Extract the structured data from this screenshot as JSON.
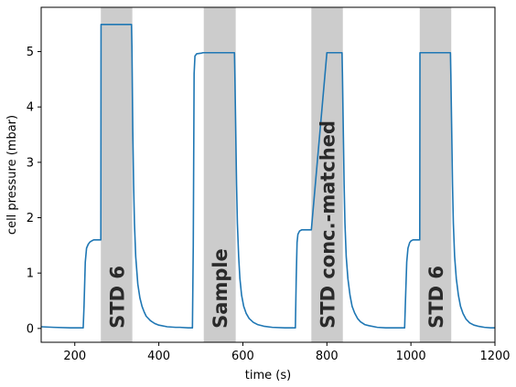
{
  "chart_data": {
    "type": "line",
    "title": "",
    "xlabel": "time (s)",
    "ylabel": "cell pressure (mbar)",
    "xlim": [
      120,
      1200
    ],
    "ylim": [
      -0.25,
      5.8
    ],
    "grid": false,
    "xticks": [
      200,
      400,
      600,
      800,
      1000,
      1200
    ],
    "yticks": [
      0,
      1,
      2,
      3,
      4,
      5
    ],
    "line_color": "#1f77b4",
    "band_color": "#cccccc",
    "bands": [
      {
        "x_start": 262,
        "x_end": 337,
        "label": "STD 6"
      },
      {
        "x_start": 507,
        "x_end": 583,
        "label": "Sample"
      },
      {
        "x_start": 763,
        "x_end": 838,
        "label": "STD conc.-matched"
      },
      {
        "x_start": 1021,
        "x_end": 1096,
        "label": "STD 6"
      }
    ],
    "series": [
      {
        "x": [
          120,
          150,
          190,
          220,
          222,
          225,
          228,
          232,
          236,
          240,
          245,
          250,
          255,
          260,
          261,
          262,
          262.5,
          265,
          300,
          335,
          336,
          338,
          340,
          342,
          345,
          350,
          355,
          360,
          365,
          370,
          380,
          390,
          400,
          420,
          440,
          450,
          470,
          480,
          482,
          484,
          486,
          490,
          500,
          505,
          507,
          520,
          560,
          580,
          581,
          583,
          585,
          587,
          590,
          593,
          597,
          602,
          608,
          615,
          625,
          635,
          650,
          670,
          700,
          725,
          727,
          729,
          731,
          735,
          740,
          750,
          760,
          763,
          800,
          836,
          837,
          839,
          841,
          843,
          846,
          850,
          855,
          860,
          866,
          873,
          880,
          890,
          900,
          920,
          940,
          960,
          985,
          987,
          990,
          993,
          997,
          1000,
          1005,
          1010,
          1015,
          1019,
          1020,
          1021,
          1021.5,
          1024,
          1060,
          1094,
          1095,
          1097,
          1099,
          1101,
          1104,
          1108,
          1113,
          1118,
          1124,
          1131,
          1140,
          1150,
          1160,
          1175,
          1190,
          1200
        ],
        "y": [
          0.03,
          0.02,
          0.01,
          0.01,
          0.4,
          1.2,
          1.45,
          1.52,
          1.56,
          1.58,
          1.6,
          1.6,
          1.6,
          1.6,
          1.6,
          1.6,
          5.49,
          5.49,
          5.49,
          5.49,
          5.1,
          3.6,
          2.6,
          1.9,
          1.3,
          0.8,
          0.55,
          0.4,
          0.3,
          0.22,
          0.14,
          0.09,
          0.06,
          0.03,
          0.02,
          0.02,
          0.01,
          0.01,
          1.5,
          4.6,
          4.92,
          4.96,
          4.97,
          4.98,
          4.98,
          4.98,
          4.98,
          4.98,
          4.6,
          3.6,
          2.6,
          1.9,
          1.3,
          0.9,
          0.6,
          0.4,
          0.27,
          0.18,
          0.11,
          0.07,
          0.04,
          0.02,
          0.01,
          0.01,
          0.9,
          1.55,
          1.7,
          1.76,
          1.78,
          1.78,
          1.78,
          1.78,
          4.98,
          4.98,
          4.6,
          3.6,
          2.6,
          1.9,
          1.3,
          0.9,
          0.6,
          0.4,
          0.28,
          0.18,
          0.12,
          0.07,
          0.05,
          0.02,
          0.01,
          0.01,
          0.01,
          0.5,
          1.2,
          1.45,
          1.55,
          1.58,
          1.6,
          1.6,
          1.6,
          1.6,
          1.6,
          1.6,
          4.98,
          4.98,
          4.98,
          4.98,
          4.6,
          3.6,
          2.6,
          1.9,
          1.3,
          0.9,
          0.6,
          0.4,
          0.27,
          0.17,
          0.1,
          0.06,
          0.04,
          0.02,
          0.01,
          0.01
        ]
      }
    ]
  }
}
